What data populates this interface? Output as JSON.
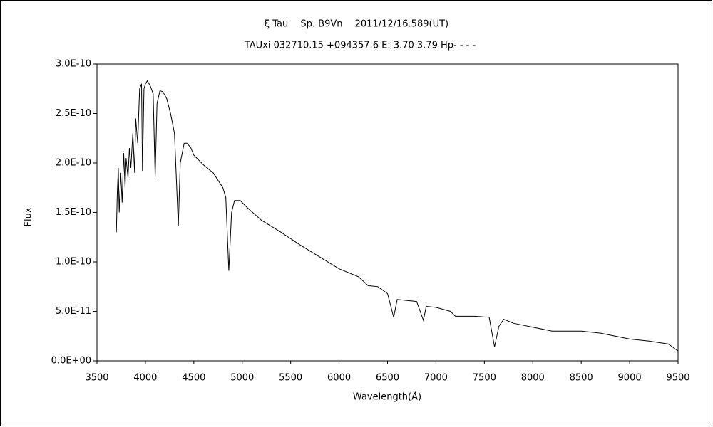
{
  "chart_data": {
    "type": "line",
    "title": "ξ Tau　 Sp. B9Vn　 2011/12/16.589(UT)",
    "subtitle": "TAUxi 032710.15 +094357.6 E: 3.70 3.79 Hp- - - -",
    "x_label": "Wavelength(Å)",
    "y_label": "Flux",
    "color": "#000000",
    "xlim": [
      3500,
      9500
    ],
    "xticks": [
      3500,
      4000,
      4500,
      5000,
      5500,
      6000,
      6500,
      7000,
      7500,
      8000,
      8500,
      9000,
      9500
    ],
    "ylim": [
      0,
      3e-10
    ],
    "yticks": [
      {
        "value": 0,
        "label": "0.0E+00"
      },
      {
        "value": 5e-11,
        "label": "5.0E-11"
      },
      {
        "value": 1e-10,
        "label": "1.0E-10"
      },
      {
        "value": 1.5e-10,
        "label": "1.5E-10"
      },
      {
        "value": 2e-10,
        "label": "2.0E-10"
      },
      {
        "value": 2.5e-10,
        "label": "2.5E-10"
      },
      {
        "value": 3e-10,
        "label": "3.0E-10"
      }
    ],
    "x": [
      3700,
      3710,
      3720,
      3730,
      3745,
      3760,
      3775,
      3790,
      3800,
      3820,
      3835,
      3850,
      3870,
      3889,
      3900,
      3920,
      3940,
      3960,
      3970,
      3985,
      4000,
      4020,
      4050,
      4080,
      4101,
      4120,
      4150,
      4180,
      4220,
      4260,
      4300,
      4340,
      4360,
      4400,
      4430,
      4470,
      4500,
      4600,
      4700,
      4800,
      4830,
      4861,
      4890,
      4920,
      4980,
      5050,
      5200,
      5400,
      5600,
      5800,
      6000,
      6200,
      6300,
      6400,
      6500,
      6563,
      6600,
      6800,
      6870,
      6900,
      7000,
      7150,
      7200,
      7400,
      7550,
      7605,
      7650,
      7700,
      7800,
      8000,
      8200,
      8500,
      8700,
      9000,
      9200,
      9400,
      9500
    ],
    "values": [
      1.3e-10,
      1.7e-10,
      1.95e-10,
      1.5e-10,
      1.9e-10,
      1.6e-10,
      2.1e-10,
      1.75e-10,
      2.05e-10,
      1.85e-10,
      2.15e-10,
      1.95e-10,
      2.3e-10,
      1.9e-10,
      2.45e-10,
      2.2e-10,
      2.75e-10,
      2.8e-10,
      1.92e-10,
      2.75e-10,
      2.8e-10,
      2.83e-10,
      2.78e-10,
      2.7e-10,
      1.86e-10,
      2.6e-10,
      2.73e-10,
      2.72e-10,
      2.65e-10,
      2.5e-10,
      2.3e-10,
      1.36e-10,
      2e-10,
      2.2e-10,
      2.2e-10,
      2.15e-10,
      2.08e-10,
      1.98e-10,
      1.9e-10,
      1.75e-10,
      1.65e-10,
      9.1e-11,
      1.5e-10,
      1.62e-10,
      1.62e-10,
      1.55e-10,
      1.42e-10,
      1.3e-10,
      1.17e-10,
      1.05e-10,
      9.3e-11,
      8.5e-11,
      7.6e-11,
      7.5e-11,
      6.8e-11,
      4.4e-11,
      6.2e-11,
      6e-11,
      4.1e-11,
      5.5e-11,
      5.4e-11,
      5e-11,
      4.5e-11,
      4.5e-11,
      4.4e-11,
      1.4e-11,
      3.5e-11,
      4.2e-11,
      3.8e-11,
      3.4e-11,
      3e-11,
      3e-11,
      2.8e-11,
      2.2e-11,
      2e-11,
      1.7e-11,
      1e-11
    ]
  }
}
